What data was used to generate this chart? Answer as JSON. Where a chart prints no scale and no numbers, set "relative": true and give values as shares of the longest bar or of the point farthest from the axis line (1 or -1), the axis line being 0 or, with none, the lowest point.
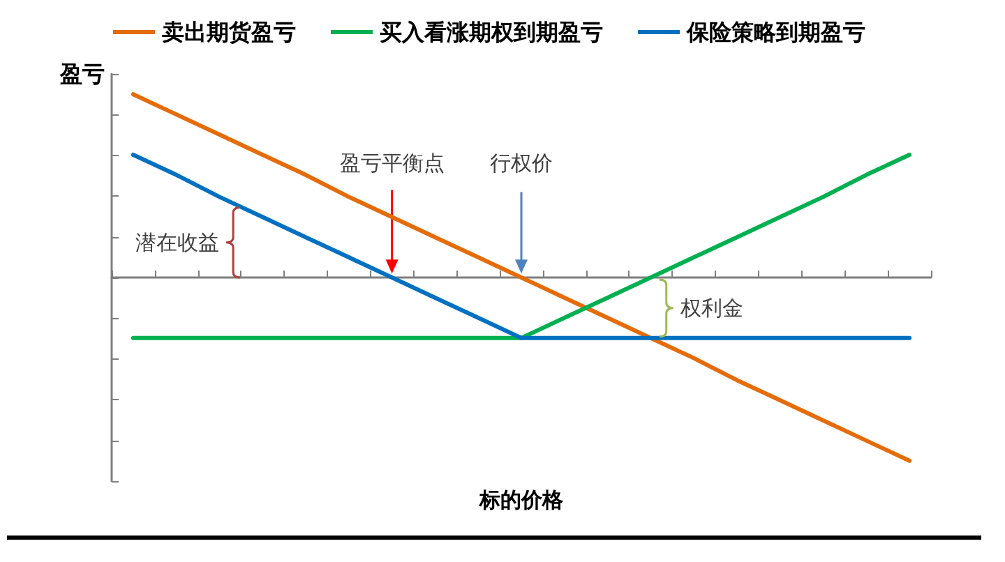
{
  "chart_data": {
    "type": "line",
    "relative": true,
    "xlabel": "标的价格",
    "ylabel": "盈亏",
    "categories": [
      null,
      null,
      null,
      null,
      null,
      null,
      null,
      null,
      null,
      null,
      null,
      null,
      null,
      null,
      null,
      null,
      null,
      null,
      null
    ],
    "series": [
      {
        "name": "卖出期货盈亏",
        "color": "#e46c0a",
        "values": [
          1,
          0.89,
          0.78,
          0.67,
          0.56,
          0.44,
          0.33,
          0.22,
          0.11,
          0,
          -0.11,
          -0.22,
          -0.33,
          -0.44,
          -0.56,
          -0.67,
          -0.78,
          -0.89,
          -1
        ]
      },
      {
        "name": "买入看涨期权到期盈亏",
        "color": "#00b050",
        "values": [
          -0.33,
          -0.33,
          -0.33,
          -0.33,
          -0.33,
          -0.33,
          -0.33,
          -0.33,
          -0.33,
          -0.33,
          -0.22,
          -0.11,
          0,
          0.11,
          0.22,
          0.33,
          0.44,
          0.56,
          0.67
        ]
      },
      {
        "name": "保险策略到期盈亏",
        "color": "#0070c0",
        "values": [
          0.67,
          0.56,
          0.44,
          0.33,
          0.22,
          0.11,
          0,
          -0.11,
          -0.22,
          -0.33,
          -0.33,
          -0.33,
          -0.33,
          -0.33,
          -0.33,
          -0.33,
          -0.33,
          -0.33,
          -0.33
        ]
      }
    ],
    "legend": "top",
    "annotations": [
      "盈亏平衡点",
      "行权价",
      "潜在收益",
      "权利金"
    ]
  }
}
